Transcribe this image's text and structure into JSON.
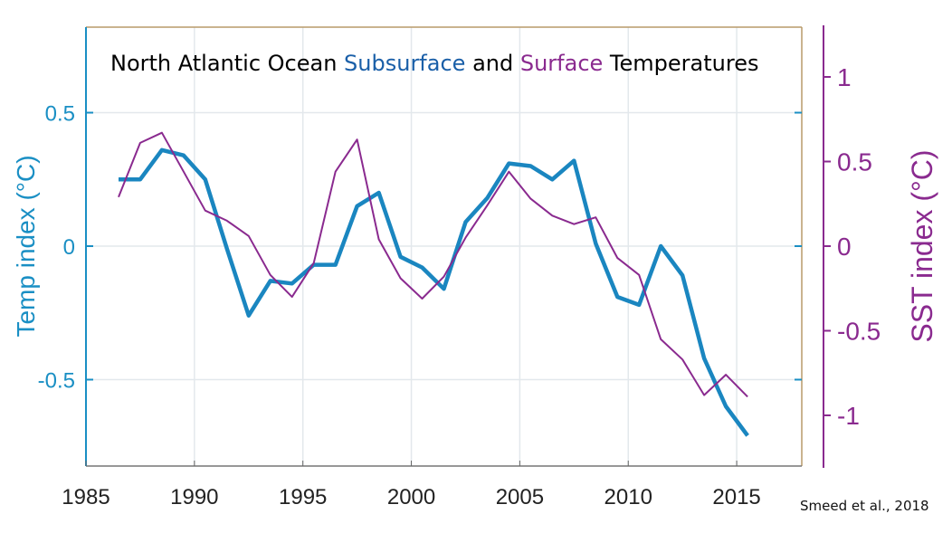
{
  "chart_data": {
    "type": "line",
    "title_parts": [
      {
        "text": "North Atlantic Ocean ",
        "color": "#000000"
      },
      {
        "text": "Subsurface",
        "color": "#1a5fa8"
      },
      {
        "text": " and ",
        "color": "#000000"
      },
      {
        "text": "Surface",
        "color": "#8a2a8f"
      },
      {
        "text": " Temperatures",
        "color": "#000000"
      }
    ],
    "ylabel_left": "Temp index (°C)",
    "ylabel_right": "SST index (°C)",
    "xlim": [
      1985,
      2018
    ],
    "ylim_left": [
      -0.8,
      0.8
    ],
    "ylim_right": [
      -1.3,
      1.3
    ],
    "xticks": [
      1985,
      1990,
      1995,
      2000,
      2005,
      2010,
      2015
    ],
    "yticks_left": [
      0.5,
      0,
      -0.5
    ],
    "yticks_left_labels": [
      "0.5",
      "0",
      "-0.5"
    ],
    "yticks_right": [
      1,
      0.5,
      0,
      -0.5,
      -1
    ],
    "yticks_right_labels": [
      "1",
      "0.5",
      "0",
      "-0.5",
      "-1"
    ],
    "grid": true,
    "x": [
      1986.5,
      1987.5,
      1988.5,
      1989.5,
      1990.5,
      1991.5,
      1992.5,
      1993.5,
      1994.5,
      1995.5,
      1996.5,
      1997.5,
      1998.5,
      1999.5,
      2000.5,
      2001.5,
      2002.5,
      2003.5,
      2004.5,
      2005.5,
      2006.5,
      2007.5,
      2008.5,
      2009.5,
      2010.5,
      2011.5,
      2012.5,
      2013.5,
      2014.5,
      2015.5
    ],
    "series": [
      {
        "axis": "left",
        "color": "#1a86c0",
        "values": [
          0.25,
          0.25,
          0.36,
          0.34,
          0.25,
          -0.01,
          -0.26,
          -0.13,
          -0.14,
          -0.07,
          -0.07,
          0.15,
          0.2,
          -0.04,
          -0.08,
          -0.16,
          0.09,
          0.18,
          0.31,
          0.3,
          0.25,
          0.32,
          0.01,
          -0.19,
          -0.22,
          0,
          -0.11,
          -0.42,
          -0.6,
          -0.71
        ]
      },
      {
        "axis": "right",
        "color": "#8a2a8f",
        "values": [
          0.29,
          0.61,
          0.67,
          0.44,
          0.21,
          0.15,
          0.06,
          -0.17,
          -0.3,
          -0.1,
          0.44,
          0.63,
          0.04,
          -0.19,
          -0.31,
          -0.18,
          0.05,
          0.24,
          0.44,
          0.28,
          0.18,
          0.13,
          0.17,
          -0.07,
          -0.17,
          -0.55,
          -0.67,
          -0.88,
          -0.76,
          -0.89
        ]
      }
    ],
    "colors": {
      "left_axis": "#1a8fc4",
      "right_axis": "#8a2a8f",
      "frame": "#b89a6a",
      "grid": "#e3e8ec"
    }
  },
  "credit": "Smeed et al., 2018"
}
